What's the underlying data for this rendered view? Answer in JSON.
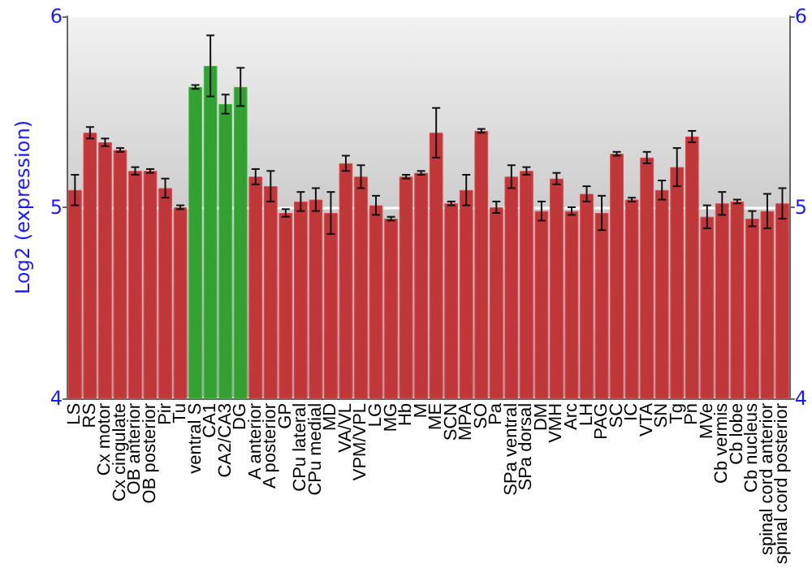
{
  "chart_data": {
    "type": "bar",
    "ylabel": "Log2 (expression)",
    "categories": [
      "LS",
      "RS",
      "Cx motor",
      "Cx cingulate",
      "OB anterior",
      "OB posterior",
      "Pir",
      "Tu",
      "ventral S",
      "CA1",
      "CA2/CA3",
      "DG",
      "A anterior",
      "A posterior",
      "GP",
      "CPu lateral",
      "CPu medial",
      "MD",
      "VA/VL",
      "VPM/VPL",
      "LG",
      "MG",
      "Hb",
      "M",
      "ME",
      "SCN",
      "MPA",
      "SO",
      "Pa",
      "SPa ventral",
      "SPa dorsal",
      "DM",
      "VMH",
      "Arc",
      "LH",
      "PAG",
      "SC",
      "IC",
      "VTA",
      "SN",
      "Tg",
      "Pn",
      "MVe",
      "Cb vermis",
      "Cb lobe",
      "Cb nucleus",
      "spinal cord anterior",
      "spinal cord posterior"
    ],
    "values": [
      5.09,
      5.39,
      5.34,
      5.3,
      5.19,
      5.19,
      5.1,
      5.0,
      5.63,
      5.74,
      5.54,
      5.63,
      5.16,
      5.11,
      4.97,
      5.03,
      5.04,
      4.97,
      5.23,
      5.16,
      5.01,
      4.94,
      5.16,
      5.18,
      5.39,
      5.02,
      5.09,
      5.4,
      5.0,
      5.16,
      5.19,
      4.98,
      5.15,
      4.98,
      5.07,
      4.97,
      5.28,
      5.04,
      5.26,
      5.09,
      5.21,
      5.37,
      4.95,
      5.02,
      5.03,
      4.94,
      4.98,
      5.02
    ],
    "errors": [
      0.08,
      0.03,
      0.02,
      0.01,
      0.02,
      0.01,
      0.05,
      0.01,
      0.01,
      0.16,
      0.05,
      0.1,
      0.04,
      0.08,
      0.02,
      0.05,
      0.06,
      0.11,
      0.04,
      0.06,
      0.05,
      0.01,
      0.01,
      0.01,
      0.13,
      0.01,
      0.08,
      0.01,
      0.03,
      0.06,
      0.02,
      0.05,
      0.03,
      0.02,
      0.04,
      0.09,
      0.01,
      0.01,
      0.03,
      0.05,
      0.1,
      0.03,
      0.06,
      0.06,
      0.01,
      0.04,
      0.09,
      0.08
    ],
    "colors": [
      "#c0373a",
      "#c0373a",
      "#c0373a",
      "#c0373a",
      "#c0373a",
      "#c0373a",
      "#c0373a",
      "#c0373a",
      "#33a033",
      "#33a033",
      "#33a033",
      "#33a033",
      "#c0373a",
      "#c0373a",
      "#c0373a",
      "#c0373a",
      "#c0373a",
      "#c0373a",
      "#c0373a",
      "#c0373a",
      "#c0373a",
      "#c0373a",
      "#c0373a",
      "#c0373a",
      "#c0373a",
      "#c0373a",
      "#c0373a",
      "#c0373a",
      "#c0373a",
      "#c0373a",
      "#c0373a",
      "#c0373a",
      "#c0373a",
      "#c0373a",
      "#c0373a",
      "#c0373a",
      "#c0373a",
      "#c0373a",
      "#c0373a",
      "#c0373a",
      "#c0373a",
      "#c0373a",
      "#c0373a",
      "#c0373a",
      "#c0373a",
      "#c0373a",
      "#c0373a",
      "#c0373a"
    ],
    "ylim": [
      4,
      6
    ],
    "yticks": [
      4,
      5,
      6
    ],
    "y2lim": [
      4,
      6
    ],
    "y2ticks": [
      4,
      5,
      6
    ],
    "grid": "y"
  }
}
